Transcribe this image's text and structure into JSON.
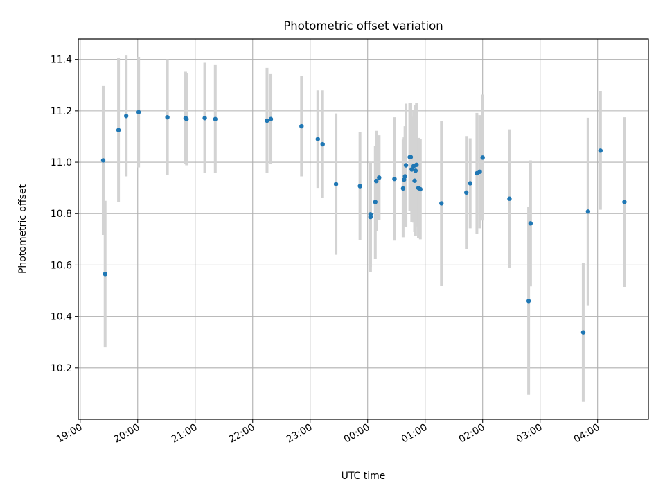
{
  "chart_data": {
    "type": "scatter",
    "title": "Photometric offset variation",
    "xlabel": "UTC time",
    "ylabel": "Photometric offset",
    "grid": true,
    "x_tick_labels": [
      "19:00",
      "20:00",
      "21:00",
      "22:00",
      "23:00",
      "00:00",
      "01:00",
      "02:00",
      "03:00",
      "04:00"
    ],
    "x_tick_rotation_deg": 30,
    "y_ticks": [
      10.2,
      10.4,
      10.6,
      10.8,
      11.0,
      11.2,
      11.4
    ],
    "ylim": [
      10.0,
      11.48
    ],
    "xlim": [
      "2000-01-01T18:58",
      "2000-01-02T04:53"
    ],
    "colors": {
      "points": "#1f77b4",
      "errorbars": "#d3d3d3",
      "grid": "#b0b0b0"
    },
    "series": [
      {
        "x": [
          "2000-01-01T19:24",
          "2000-01-01T19:26",
          "2000-01-01T19:40",
          "2000-01-01T19:48",
          "2000-01-01T20:01",
          "2000-01-01T20:31",
          "2000-01-01T20:50",
          "2000-01-01T20:51",
          "2000-01-01T21:10",
          "2000-01-01T21:21",
          "2000-01-01T22:15",
          "2000-01-01T22:19",
          "2000-01-01T22:51",
          "2000-01-01T23:08",
          "2000-01-01T23:13",
          "2000-01-01T23:27",
          "2000-01-01T23:52",
          "2000-01-02T00:03",
          "2000-01-02T00:03",
          "2000-01-02T00:08",
          "2000-01-02T00:09",
          "2000-01-02T00:12",
          "2000-01-02T00:28",
          "2000-01-02T00:37",
          "2000-01-02T00:38",
          "2000-01-02T00:39",
          "2000-01-02T00:40",
          "2000-01-02T00:44",
          "2000-01-02T00:45",
          "2000-01-02T00:46",
          "2000-01-02T00:48",
          "2000-01-02T00:49",
          "2000-01-02T00:50",
          "2000-01-02T00:51",
          "2000-01-02T00:53",
          "2000-01-02T00:55",
          "2000-01-02T01:17",
          "2000-01-02T01:43",
          "2000-01-02T01:47",
          "2000-01-02T01:54",
          "2000-01-02T01:57",
          "2000-01-02T02:00",
          "2000-01-02T02:28",
          "2000-01-02T02:48",
          "2000-01-02T02:50",
          "2000-01-02T03:45",
          "2000-01-02T03:50",
          "2000-01-02T04:03",
          "2000-01-02T04:28"
        ],
        "y": [
          11.007,
          10.565,
          11.125,
          11.18,
          11.195,
          11.175,
          11.172,
          11.168,
          11.172,
          11.168,
          11.162,
          11.168,
          11.14,
          11.09,
          11.07,
          10.915,
          10.907,
          10.797,
          10.787,
          10.845,
          10.927,
          10.94,
          10.935,
          10.898,
          10.932,
          10.945,
          10.988,
          11.02,
          11.02,
          10.972,
          10.985,
          10.928,
          10.967,
          10.99,
          10.9,
          10.895,
          10.84,
          10.882,
          10.918,
          10.957,
          10.963,
          11.018,
          10.858,
          10.46,
          10.762,
          10.338,
          10.808,
          11.045,
          10.845
        ],
        "yerr": [
          0.29,
          0.285,
          0.28,
          0.235,
          0.215,
          0.225,
          0.18,
          0.18,
          0.215,
          0.21,
          0.205,
          0.175,
          0.195,
          0.19,
          0.21,
          0.275,
          0.21,
          0.205,
          0.215,
          0.22,
          0.195,
          0.165,
          0.24,
          0.19,
          0.165,
          0.195,
          0.24,
          0.21,
          0.21,
          0.205,
          0.22,
          0.2,
          0.255,
          0.24,
          0.195,
          0.195,
          0.32,
          0.22,
          0.175,
          0.235,
          0.22,
          0.245,
          0.27,
          0.365,
          0.245,
          0.27,
          0.365,
          0.23,
          0.33
        ]
      }
    ]
  }
}
